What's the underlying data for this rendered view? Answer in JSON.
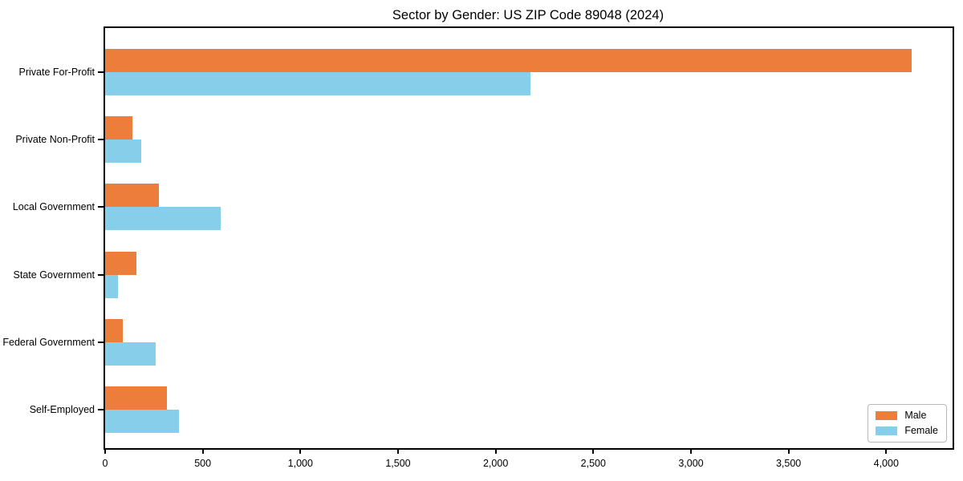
{
  "chart_data": {
    "type": "bar",
    "orientation": "horizontal",
    "title": "Sector by Gender: US ZIP Code 89048 (2024)",
    "categories": [
      "Private For-Profit",
      "Private Non-Profit",
      "Local Government",
      "State Government",
      "Federal Government",
      "Self-Employed"
    ],
    "series": [
      {
        "name": "Male",
        "color": "#EC7D3A",
        "values": [
          4130,
          140,
          275,
          160,
          90,
          315
        ]
      },
      {
        "name": "Female",
        "color": "#87CEEB",
        "values": [
          2180,
          185,
          590,
          65,
          260,
          380
        ]
      }
    ],
    "xlabel": "",
    "ylabel": "",
    "xlim": [
      0,
      4340
    ],
    "xticks": [
      0,
      500,
      1000,
      1500,
      2000,
      2500,
      3000,
      3500,
      4000
    ],
    "xtick_labels": [
      "0",
      "500",
      "1,000",
      "1,500",
      "2,000",
      "2,500",
      "3,000",
      "3,500",
      "4,000"
    ],
    "grid": false,
    "legend_position": "lower right",
    "frame_color": "#000000",
    "background_color": "#ffffff",
    "text_color": "#000000",
    "legend_border_color": "#b9b9b9"
  }
}
